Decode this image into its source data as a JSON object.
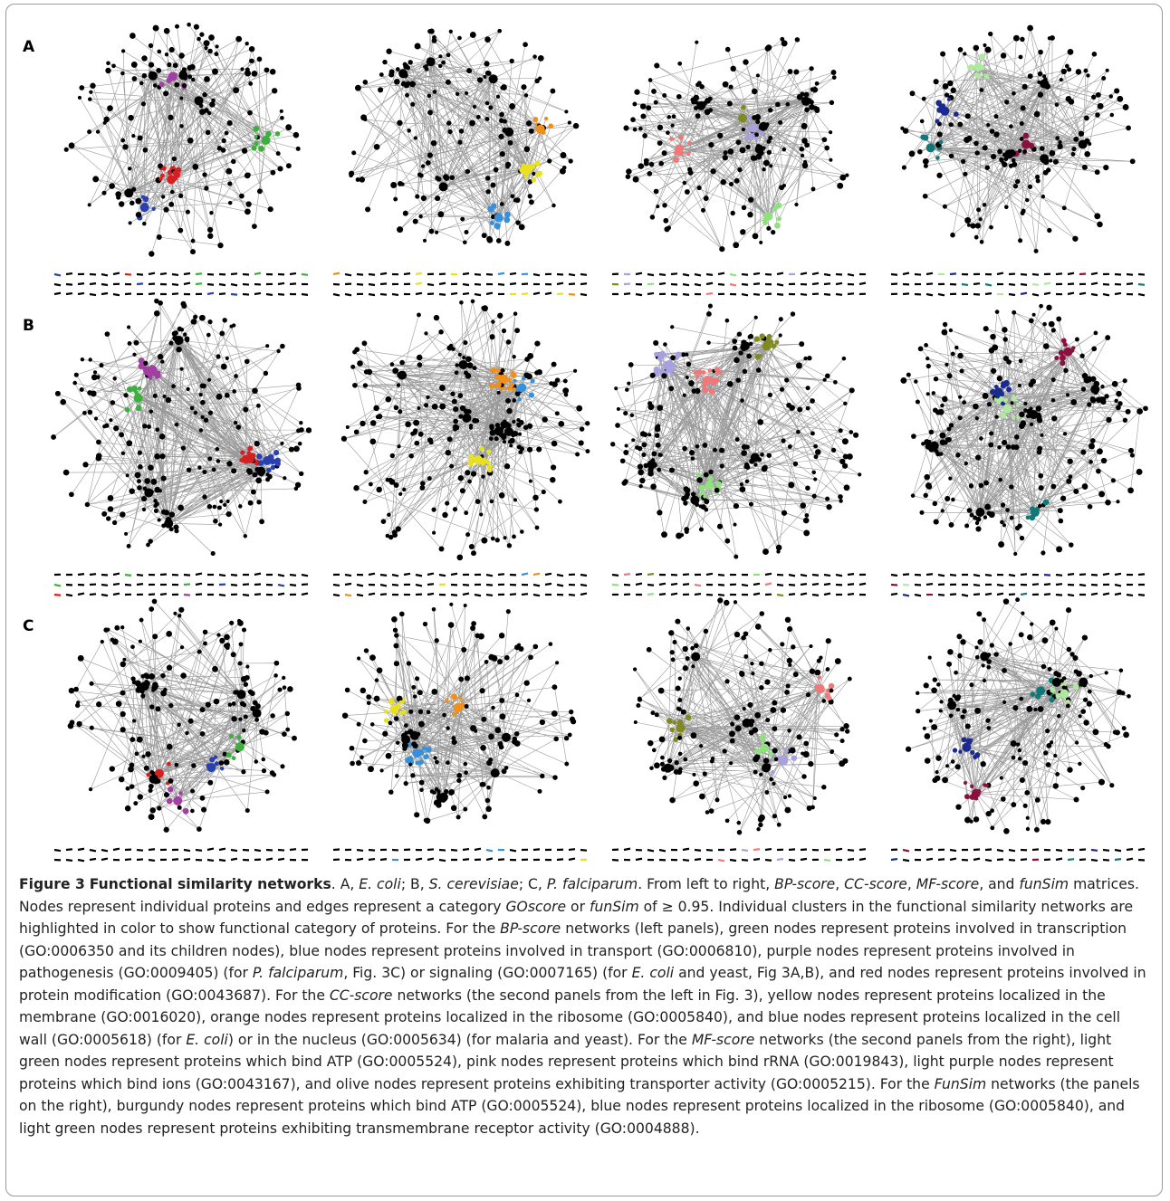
{
  "figure": {
    "panel_labels": [
      "A",
      "B",
      "C"
    ],
    "label": "Figure 3",
    "title": "Functional similarity networks",
    "caption": [
      {
        "text": ". A, ",
        "italic": false
      },
      {
        "text": "E. coli",
        "italic": true
      },
      {
        "text": "; B, ",
        "italic": false
      },
      {
        "text": "S. cerevisiae",
        "italic": true
      },
      {
        "text": "; C, ",
        "italic": false
      },
      {
        "text": "P. falciparum",
        "italic": true
      },
      {
        "text": ". From left to right, ",
        "italic": false
      },
      {
        "text": "BP-score",
        "italic": true
      },
      {
        "text": ", ",
        "italic": false
      },
      {
        "text": "CC-score",
        "italic": true
      },
      {
        "text": ", ",
        "italic": false
      },
      {
        "text": "MF-score",
        "italic": true
      },
      {
        "text": ", and ",
        "italic": false
      },
      {
        "text": "funSim",
        "italic": true
      },
      {
        "text": " matrices. Nodes represent individual proteins and edges represent a category ",
        "italic": false
      },
      {
        "text": "GOscore",
        "italic": true
      },
      {
        "text": " or ",
        "italic": false
      },
      {
        "text": "funSim",
        "italic": true
      },
      {
        "text": " of ≥ 0.95. Individual clusters in the functional similarity networks are highlighted in color to show functional category of proteins. For the ",
        "italic": false
      },
      {
        "text": "BP-score",
        "italic": true
      },
      {
        "text": " networks (left panels), green nodes represent proteins involved in transcription (GO:0006350 and its children nodes), blue nodes represent proteins involved in transport (GO:0006810), purple nodes represent proteins involved in pathogenesis (GO:0009405) (for ",
        "italic": false
      },
      {
        "text": "P. falciparum",
        "italic": true
      },
      {
        "text": ", Fig. 3C) or signaling (GO:0007165) (for ",
        "italic": false
      },
      {
        "text": "E. coli",
        "italic": true
      },
      {
        "text": " and yeast, Fig 3A,B), and red nodes represent proteins involved in protein modification (GO:0043687). For the ",
        "italic": false
      },
      {
        "text": "CC-score",
        "italic": true
      },
      {
        "text": " networks (the second panels from the left in Fig. 3), yellow nodes represent proteins localized in the membrane (GO:0016020), orange nodes represent proteins localized in the ribosome (GO:0005840), and blue nodes represent proteins localized in the cell wall (GO:0005618) (for ",
        "italic": false
      },
      {
        "text": "E. coli",
        "italic": true
      },
      {
        "text": ") or in the nucleus (GO:0005634) (for malaria and yeast). For the ",
        "italic": false
      },
      {
        "text": "MF-score",
        "italic": true
      },
      {
        "text": " networks (the second panels from the right), light green nodes represent proteins which bind ATP (GO:0005524), pink nodes represent proteins which bind rRNA (GO:0019843), light purple nodes represent proteins which bind ions (GO:0043167), and olive nodes represent proteins exhibiting transporter activity (GO:0005215). For the ",
        "italic": false
      },
      {
        "text": "FunSim",
        "italic": true
      },
      {
        "text": " networks (the panels on the right), burgundy nodes represent proteins which bind ATP (GO:0005524), blue nodes represent proteins localized in the ribosome (GO:0005840), and light green nodes represent proteins exhibiting transmembrane receptor activity (GO:0004888).",
        "italic": false
      }
    ]
  }
}
